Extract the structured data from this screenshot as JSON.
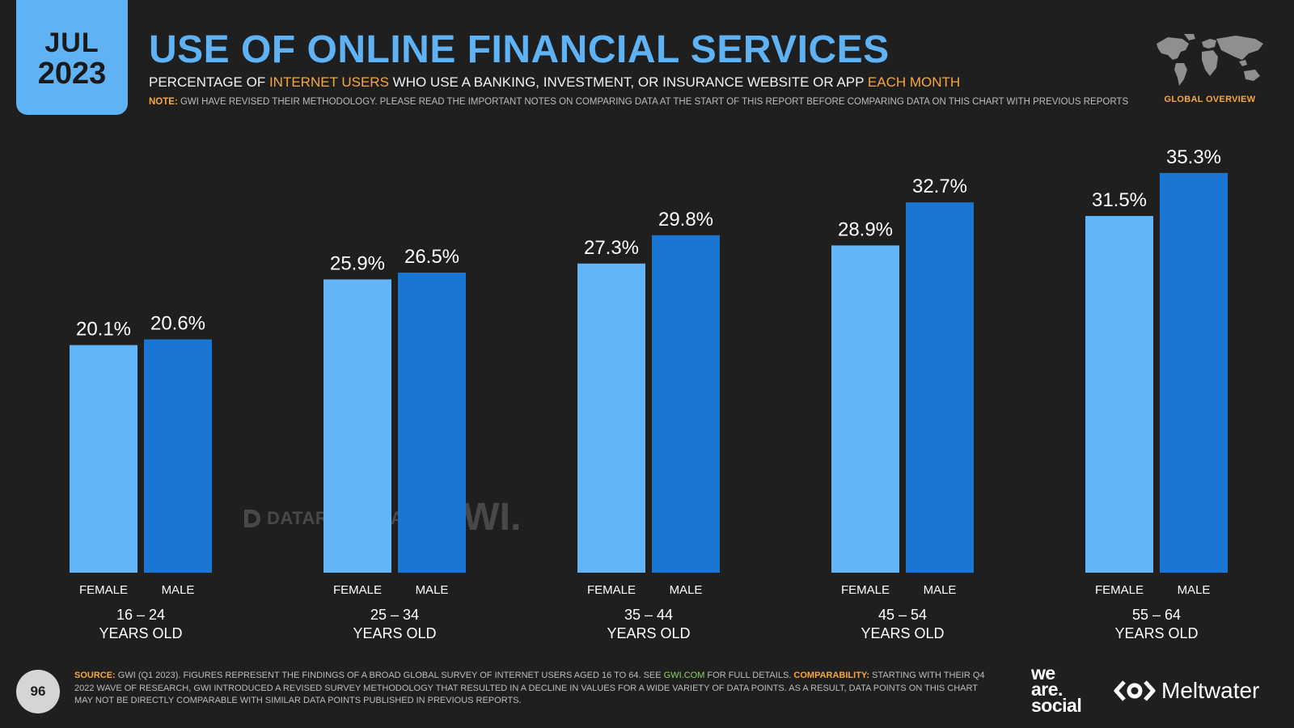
{
  "header": {
    "date_month": "JUL",
    "date_year": "2023",
    "title": "USE OF ONLINE FINANCIAL SERVICES",
    "subtitle_a": "PERCENTAGE OF ",
    "subtitle_b": "INTERNET USERS",
    "subtitle_c": " WHO USE A BANKING, INVESTMENT, OR INSURANCE WEBSITE OR APP ",
    "subtitle_d": "EACH MONTH",
    "note_label": "NOTE:",
    "note_text": " GWI HAVE REVISED THEIR METHODOLOGY. PLEASE READ THE IMPORTANT NOTES ON COMPARING DATA AT THE START OF THIS REPORT BEFORE COMPARING DATA ON THIS CHART WITH PREVIOUS REPORTS",
    "region_label": "GLOBAL OVERVIEW"
  },
  "watermarks": {
    "datareportal": "DATAREPORTAL",
    "gwi": "GWI."
  },
  "footer": {
    "page_number": "96",
    "source_label": "SOURCE:",
    "source_text_1": " GWI (Q1 2023). FIGURES REPRESENT THE FINDINGS OF A BROAD GLOBAL SURVEY OF INTERNET USERS AGED 16 TO 64. SEE ",
    "source_link": "GWI.COM",
    "source_text_2": " FOR FULL DETAILS. ",
    "comparability_label": "COMPARABILITY:",
    "comparability_text": " STARTING WITH THEIR Q4 2022 WAVE OF RESEARCH, GWI INTRODUCED A REVISED SURVEY METHODOLOGY THAT RESULTED IN A DECLINE IN VALUES FOR A WIDE VARIETY OF DATA POINTS. AS A RESULT, DATA POINTS ON THIS CHART MAY NOT BE DIRECTLY COMPARABLE WITH SIMILAR DATA POINTS PUBLISHED IN PREVIOUS REPORTS.",
    "brand_we": "we",
    "brand_are": "are.",
    "brand_social": "social",
    "brand_meltwater": "Meltwater"
  },
  "chart_data": {
    "type": "bar",
    "categories": [
      {
        "range": "16 – 24",
        "suffix": "YEARS OLD"
      },
      {
        "range": "25 – 34",
        "suffix": "YEARS OLD"
      },
      {
        "range": "35 – 44",
        "suffix": "YEARS OLD"
      },
      {
        "range": "45 – 54",
        "suffix": "YEARS OLD"
      },
      {
        "range": "55 – 64",
        "suffix": "YEARS OLD"
      }
    ],
    "series": [
      {
        "name": "FEMALE",
        "color": "#64b5f6",
        "values": [
          20.1,
          25.9,
          27.3,
          28.9,
          31.5
        ],
        "labels": [
          "20.1%",
          "25.9%",
          "27.3%",
          "28.9%",
          "31.5%"
        ]
      },
      {
        "name": "MALE",
        "color": "#1976d2",
        "values": [
          20.6,
          26.5,
          29.8,
          32.7,
          35.3
        ],
        "labels": [
          "20.6%",
          "26.5%",
          "29.8%",
          "32.7%",
          "35.3%"
        ]
      }
    ],
    "ylim": [
      0,
      40
    ],
    "unit": "%"
  }
}
